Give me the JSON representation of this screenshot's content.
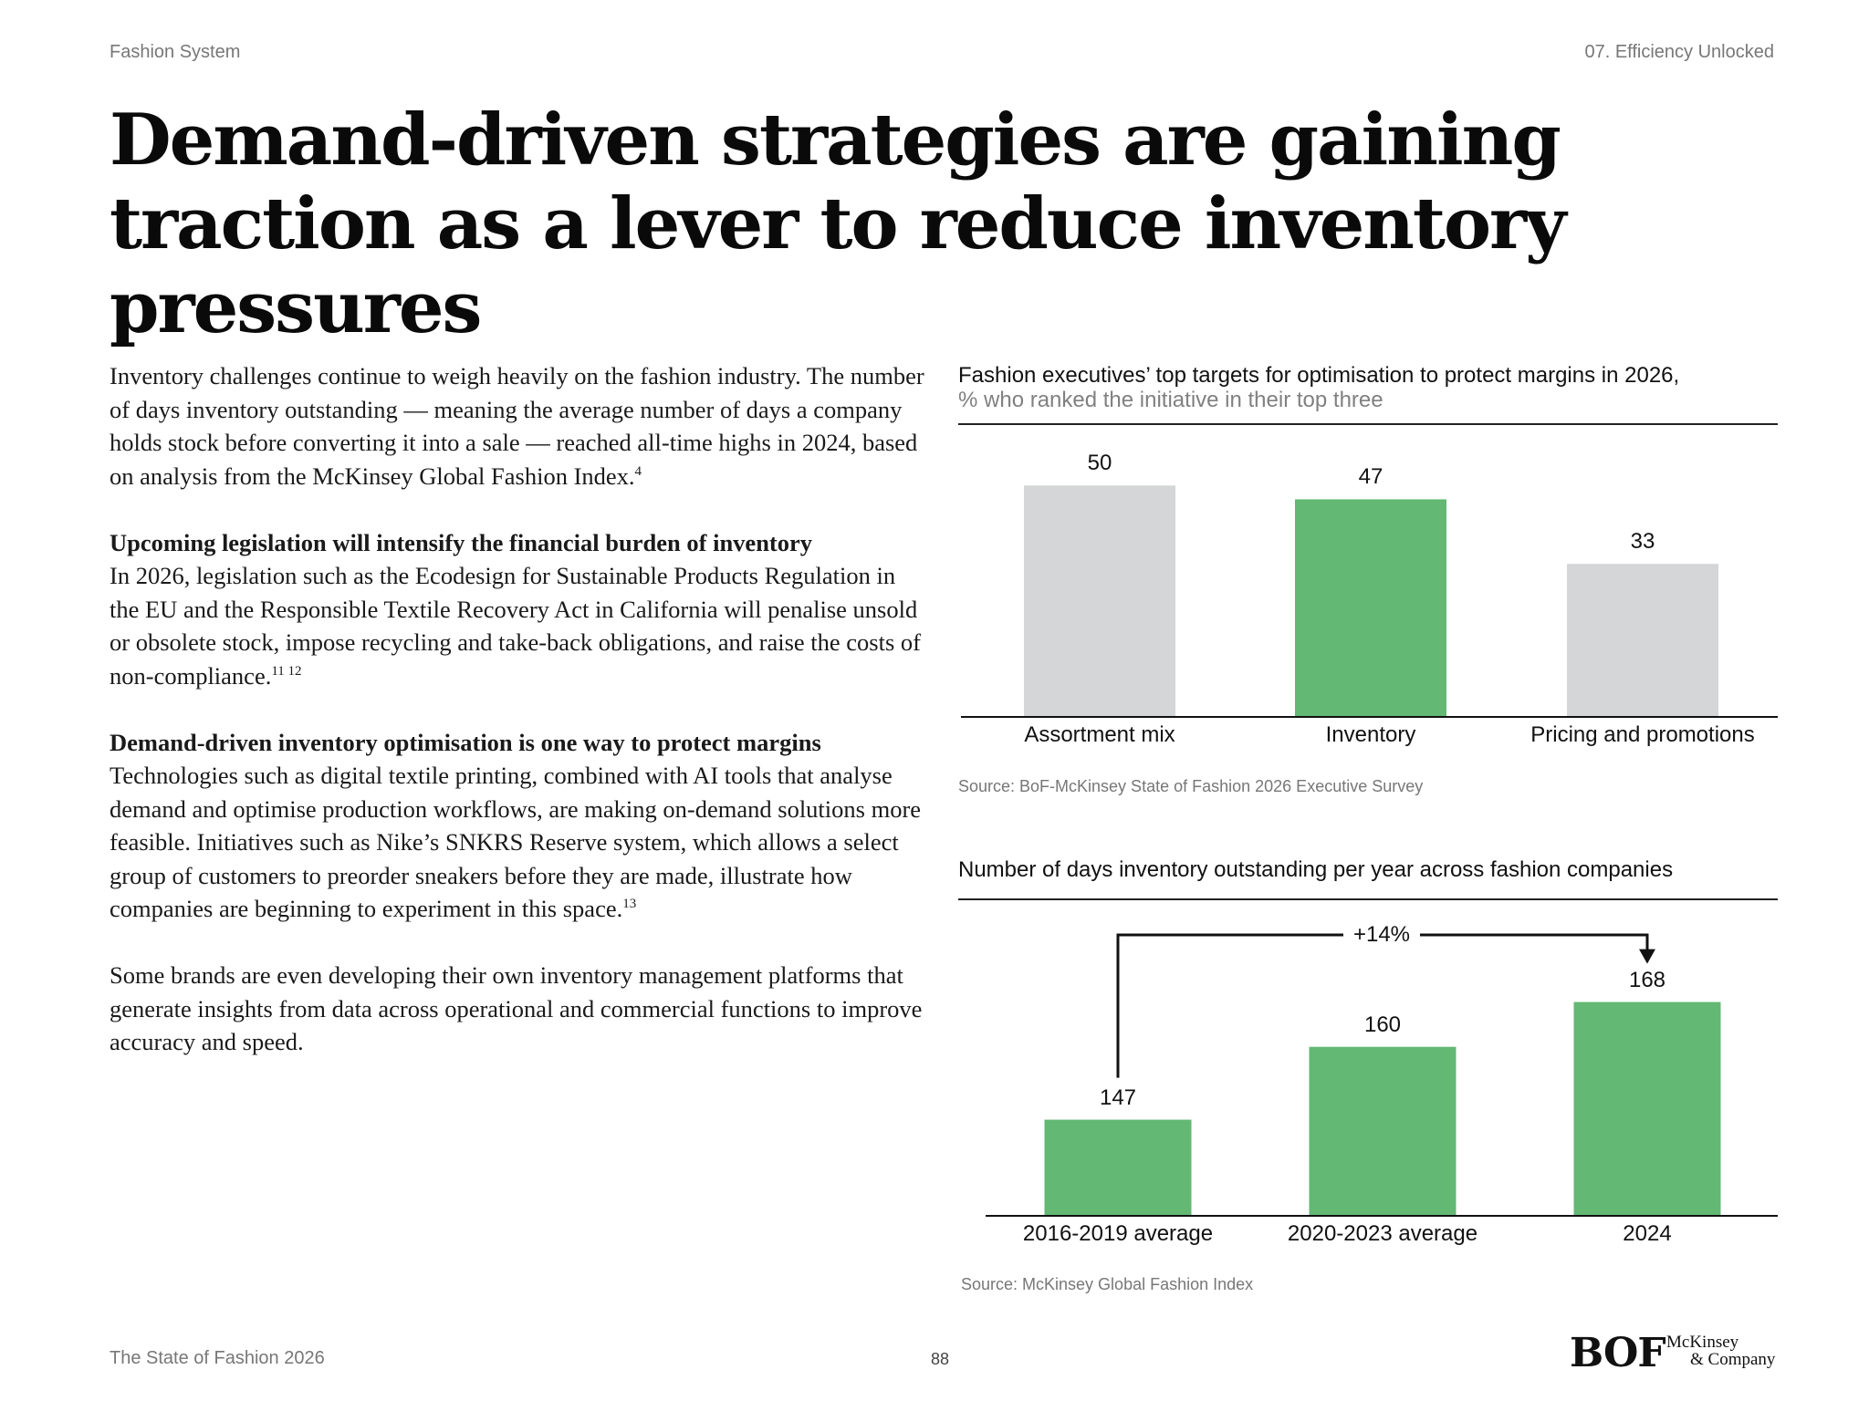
{
  "header": {
    "left": "Fashion System",
    "right": "07. Efficiency Unlocked"
  },
  "headline": "Demand-driven strategies are gaining traction as a lever to reduce inventory pressures",
  "body": {
    "p1": "Inventory challenges continue to weigh heavily on the fashion industry. The number of days inventory outstanding — meaning the average number of days a company holds stock before converting it into a sale — reached all-time highs in 2024, based on analysis from the McKinsey Global Fashion Index.",
    "p1_note": "4",
    "sub1": "Upcoming legislation will intensify the financial burden of inventory",
    "p2": "In 2026, legislation such as the Ecodesign for Sustainable Products Regulation in the EU and the Responsible Textile Recovery Act in California will penalise unsold or obsolete stock, impose recycling and take-back obligations, and raise the costs of non-compliance.",
    "p2_note": "11 12",
    "sub2": "Demand-driven inventory optimisation is one way to protect margins",
    "p3": "Technologies such as digital textile printing, combined with AI tools that analyse demand and optimise production workflows, are making on-demand solutions more feasible. Initiatives such as Nike’s SNKRS Reserve system, which allows a select group of customers to preorder sneakers before they are made, illustrate how companies are beginning to experiment in this space.",
    "p3_note": "13",
    "p4": "Some brands are even developing their own inventory management platforms that generate insights from data across operational and commercial functions to improve accuracy and speed."
  },
  "chart_data": [
    {
      "type": "bar",
      "title": "Fashion executives’ top targets for optimisation to protect margins in 2026,",
      "subtitle": "% who ranked the initiative in their top three",
      "categories": [
        "Assortment mix",
        "Inventory",
        "Pricing and promotions"
      ],
      "values": [
        50,
        47,
        33
      ],
      "value_labels": [
        "50",
        "47",
        "33"
      ],
      "colors": [
        "#d5d6d7",
        "#63b874",
        "#d5d6d7"
      ],
      "ylim": [
        0,
        55
      ],
      "grid": false,
      "source": "Source: BoF-McKinsey State of Fashion 2026 Executive Survey"
    },
    {
      "type": "bar",
      "title": "Number of days inventory outstanding per year across fashion companies",
      "categories": [
        "2016-2019 average",
        "2020-2023 average",
        "2024"
      ],
      "values": [
        147,
        160,
        168
      ],
      "value_labels": [
        "147",
        "160",
        "168"
      ],
      "colors": [
        "#63b874",
        "#63b874",
        "#63b874"
      ],
      "ylim": [
        130,
        172
      ],
      "grid": false,
      "annotation": "+14%",
      "source": "Source: McKinsey Global Fashion Index"
    }
  ],
  "footer": {
    "left": "The State of Fashion 2026",
    "page": "88",
    "logo_bof": "BOF",
    "logo_mck_line1": "McKinsey",
    "logo_mck_line2": "& Company"
  }
}
